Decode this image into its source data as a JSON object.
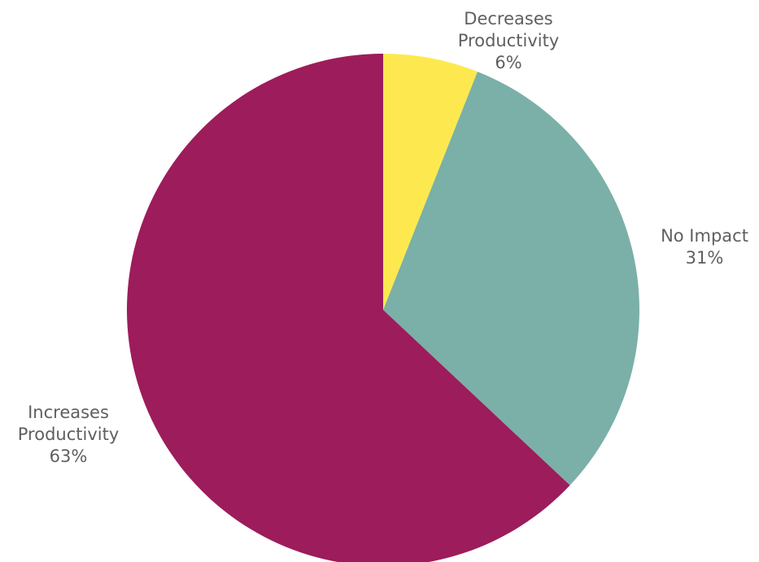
{
  "chart_data": {
    "type": "pie",
    "slices": [
      {
        "label": "Decreases Productivity",
        "value": 6,
        "value_label": "6%",
        "color": "#FDE94F"
      },
      {
        "label": "No Impact",
        "value": 31,
        "value_label": "31%",
        "color": "#7AB0A7"
      },
      {
        "label": "Increases Productivity",
        "value": 63,
        "value_label": "63%",
        "color": "#9D1C5B"
      }
    ],
    "start_angle": "12 o'clock",
    "direction": "clockwise",
    "labels_outside": true,
    "legend": "none"
  }
}
